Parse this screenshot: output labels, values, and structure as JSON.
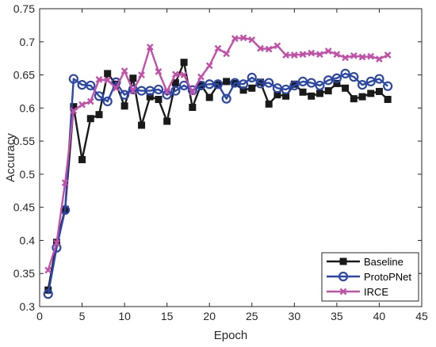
{
  "chart_data": {
    "type": "line",
    "title": "",
    "xlabel": "Epoch",
    "ylabel": "Accuracy",
    "xlim": [
      0,
      45
    ],
    "ylim": [
      0.3,
      0.75
    ],
    "xticks": [
      0,
      5,
      10,
      15,
      20,
      25,
      30,
      35,
      40,
      45
    ],
    "yticks": [
      0.3,
      0.35,
      0.4,
      0.45,
      0.5,
      0.55,
      0.6,
      0.65,
      0.7,
      0.75
    ],
    "grid": false,
    "legend_position": "bottom-right",
    "x": [
      1,
      2,
      3,
      4,
      5,
      6,
      7,
      8,
      9,
      10,
      11,
      12,
      13,
      14,
      15,
      16,
      17,
      18,
      19,
      20,
      21,
      22,
      23,
      24,
      25,
      26,
      27,
      28,
      29,
      30,
      31,
      32,
      33,
      34,
      35,
      36,
      37,
      38,
      39,
      40,
      41
    ],
    "series": [
      {
        "name": "Baseline",
        "color": "#1a1a1a",
        "marker": "square",
        "values": [
          0.325,
          0.397,
          0.447,
          0.602,
          0.522,
          0.584,
          0.59,
          0.652,
          0.636,
          0.603,
          0.645,
          0.574,
          0.617,
          0.613,
          0.58,
          0.638,
          0.669,
          0.601,
          0.635,
          0.616,
          0.635,
          0.64,
          0.637,
          0.627,
          0.63,
          0.639,
          0.606,
          0.62,
          0.618,
          0.636,
          0.624,
          0.618,
          0.622,
          0.626,
          0.637,
          0.63,
          0.614,
          0.617,
          0.622,
          0.625,
          0.613
        ]
      },
      {
        "name": "ProtoPNet",
        "color": "#2b47a8",
        "marker": "circle",
        "values": [
          0.319,
          0.389,
          0.446,
          0.644,
          0.635,
          0.634,
          0.618,
          0.61,
          0.639,
          0.62,
          0.628,
          0.626,
          0.626,
          0.628,
          0.62,
          0.626,
          0.634,
          0.627,
          0.634,
          0.636,
          0.636,
          0.614,
          0.638,
          0.636,
          0.646,
          0.637,
          0.638,
          0.63,
          0.628,
          0.634,
          0.64,
          0.638,
          0.634,
          0.642,
          0.645,
          0.652,
          0.647,
          0.635,
          0.64,
          0.644,
          0.633
        ]
      },
      {
        "name": "IRCE",
        "color": "#c24fa8",
        "marker": "x",
        "values": [
          0.355,
          0.396,
          0.487,
          0.596,
          0.605,
          0.61,
          0.643,
          0.642,
          0.63,
          0.656,
          0.626,
          0.65,
          0.692,
          0.655,
          0.625,
          0.651,
          0.65,
          0.624,
          0.647,
          0.664,
          0.69,
          0.682,
          0.705,
          0.706,
          0.703,
          0.69,
          0.689,
          0.694,
          0.68,
          0.68,
          0.681,
          0.683,
          0.681,
          0.686,
          0.681,
          0.676,
          0.679,
          0.677,
          0.678,
          0.674,
          0.68
        ]
      }
    ]
  }
}
